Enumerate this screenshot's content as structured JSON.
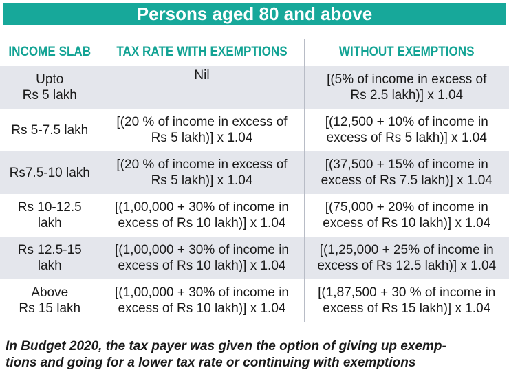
{
  "title": "Persons aged 80 and above",
  "headers": [
    "INCOME SLAB",
    "TAX RATE WITH EXEMPTIONS",
    "WITHOUT EXEMPTIONS"
  ],
  "rows": [
    {
      "slab": [
        "Upto",
        "Rs 5 lakh"
      ],
      "with": [
        "Nil"
      ],
      "without": [
        "[(5% of income in excess of",
        "Rs 2.5 lakh)] x 1.04"
      ]
    },
    {
      "slab": [
        "Rs 5-7.5 lakh"
      ],
      "with": [
        "[(20 % of income in excess of",
        "Rs 5 lakh)] x 1.04"
      ],
      "without": [
        "[(12,500 + 10% of income in",
        "excess of Rs 5 lakh)] x 1.04"
      ]
    },
    {
      "slab": [
        "Rs7.5-10 lakh"
      ],
      "with": [
        "[(20 % of income in excess of",
        "Rs 5 lakh)] x 1.04"
      ],
      "without": [
        "[(37,500 + 15% of income in",
        "excess of Rs 7.5 lakh)] x 1.04"
      ]
    },
    {
      "slab": [
        "Rs 10-12.5",
        "lakh"
      ],
      "with": [
        "[(1,00,000 + 30% of income in",
        "excess of Rs 10 lakh)] x 1.04"
      ],
      "without": [
        "[(75,000 + 20% of income in",
        "excess of Rs 10 lakh)] x 1.04"
      ]
    },
    {
      "slab": [
        "Rs 12.5-15",
        "lakh"
      ],
      "with": [
        "[(1,00,000 + 30% of income in",
        "excess of Rs 10 lakh)] x 1.04"
      ],
      "without": [
        "[(1,25,000 + 25% of income in",
        "excess of Rs 12.5 lakh)] x 1.04"
      ]
    },
    {
      "slab": [
        "Above",
        "Rs 15 lakh"
      ],
      "with": [
        "[(1,00,000 + 30% of income in",
        "excess of Rs 10 lakh)] x 1.04"
      ],
      "without": [
        "[(1,87,500 + 30 % of income in",
        "excess of Rs 15 lakh)] x 1.04"
      ]
    }
  ],
  "footnote": [
    "In Budget 2020, the tax payer was given the option of giving up exemp-",
    "tions and going for a lower tax rate or continuing with exemptions"
  ],
  "colors": {
    "accent": "#17a89a",
    "shade": "#e4e6ec"
  }
}
